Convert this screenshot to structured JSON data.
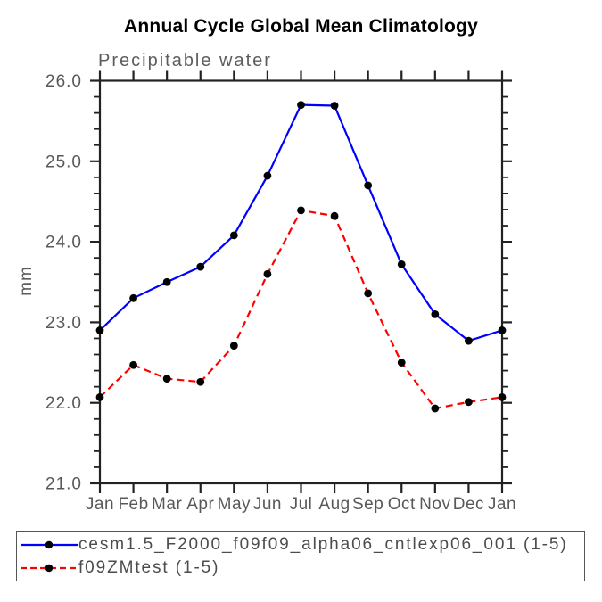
{
  "chart_data": {
    "type": "line",
    "title": "Annual Cycle Global Mean Climatology",
    "subtitle": "Precipitable water",
    "ylabel": "mm",
    "xlabel": "",
    "categories": [
      "Jan",
      "Feb",
      "Mar",
      "Apr",
      "May",
      "Jun",
      "Jul",
      "Aug",
      "Sep",
      "Oct",
      "Nov",
      "Dec",
      "Jan"
    ],
    "ylim": [
      21.0,
      26.0
    ],
    "yticks": [
      [
        21.0,
        "21.0"
      ],
      [
        22.0,
        "22.0"
      ],
      [
        23.0,
        "23.0"
      ],
      [
        24.0,
        "24.0"
      ],
      [
        25.0,
        "25.0"
      ],
      [
        26.0,
        "26.0"
      ]
    ],
    "ytick_minor_step": 0.2,
    "grid": false,
    "legend_position": "bottom-outside-box",
    "axis_color": "#222222",
    "label_color": "#585858",
    "series": [
      {
        "name": "cesm1.5_F2000_f09f09_alpha06_cntlexp06_001 (1-5)",
        "color": "#0000ff",
        "line_style": "solid",
        "marker": "filled-circle",
        "marker_color": "#000000",
        "values": [
          22.9,
          23.3,
          23.5,
          23.69,
          24.08,
          24.82,
          25.7,
          25.69,
          24.7,
          23.72,
          23.1,
          22.77,
          22.9
        ]
      },
      {
        "name": "f09ZMtest (1-5)",
        "color": "#ff0000",
        "line_style": "dashed",
        "marker": "filled-circle",
        "marker_color": "#000000",
        "values": [
          22.07,
          22.47,
          22.3,
          22.26,
          22.71,
          23.6,
          24.39,
          24.32,
          23.36,
          22.5,
          21.93,
          22.01,
          22.07
        ]
      }
    ]
  }
}
